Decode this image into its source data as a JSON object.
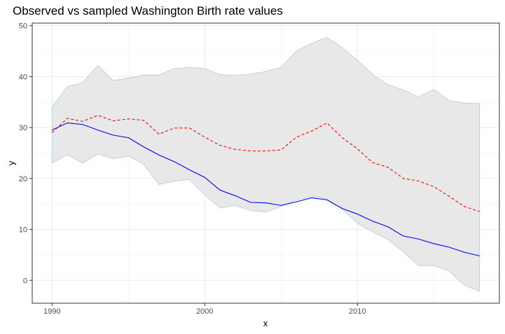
{
  "chart_data": {
    "type": "line",
    "title": "Observed vs sampled Washington Birth rate values",
    "xlabel": "x",
    "ylabel": "y",
    "xlim": [
      1988.7,
      2019.3
    ],
    "ylim": [
      -4.5,
      50.5
    ],
    "x_ticks": [
      1990,
      2000,
      2010
    ],
    "x_minor_ticks": [
      1995,
      2005,
      2015
    ],
    "y_ticks": [
      0,
      10,
      20,
      30,
      40,
      50
    ],
    "y_minor_ticks": [
      5,
      15,
      25,
      35,
      45
    ],
    "grid": true,
    "legend": "none",
    "x": [
      1990,
      1991,
      1992,
      1993,
      1994,
      1995,
      1996,
      1997,
      1998,
      1999,
      2000,
      2001,
      2002,
      2003,
      2004,
      2005,
      2006,
      2007,
      2008,
      2009,
      2010,
      2011,
      2012,
      2013,
      2014,
      2015,
      2016,
      2017,
      2018
    ],
    "band": {
      "lower": [
        23.0,
        24.7,
        23.0,
        24.8,
        23.9,
        24.4,
        22.8,
        18.8,
        19.5,
        19.8,
        16.8,
        14.2,
        14.7,
        13.7,
        13.4,
        14.5,
        15.8,
        16.5,
        16.0,
        14.0,
        11.2,
        9.5,
        8.0,
        5.6,
        2.9,
        2.9,
        1.8,
        -0.9,
        -2.2
      ],
      "upper": [
        34.0,
        38.0,
        38.8,
        42.2,
        39.2,
        39.7,
        40.3,
        40.3,
        41.6,
        41.8,
        41.6,
        40.4,
        40.2,
        40.5,
        41.0,
        41.8,
        45.0,
        46.5,
        47.7,
        45.7,
        43.2,
        40.4,
        38.4,
        37.4,
        36.0,
        37.5,
        35.3,
        34.8,
        34.7
      ],
      "fill": "#e8e8e8",
      "stroke": "#a9cfe0"
    },
    "series": [
      {
        "values": [
          29.5,
          30.9,
          30.6,
          29.5,
          28.5,
          28.0,
          26.2,
          24.6,
          23.3,
          21.7,
          20.2,
          17.7,
          16.6,
          15.3,
          15.2,
          14.7,
          15.4,
          16.2,
          15.8,
          14.1,
          13.0,
          11.6,
          10.5,
          8.7,
          8.1,
          7.2,
          6.5,
          5.5,
          4.8
        ],
        "color": "#0000ff",
        "dash": "solid"
      },
      {
        "values": [
          29.0,
          31.8,
          31.2,
          32.4,
          31.3,
          31.7,
          31.4,
          28.7,
          29.9,
          29.9,
          28.1,
          26.5,
          25.7,
          25.4,
          25.4,
          25.6,
          28.1,
          29.3,
          30.9,
          28.0,
          25.8,
          23.1,
          22.2,
          20.0,
          19.5,
          18.4,
          16.5,
          14.5,
          13.5
        ],
        "color": "#ff0000",
        "dash": "dashed"
      }
    ]
  }
}
